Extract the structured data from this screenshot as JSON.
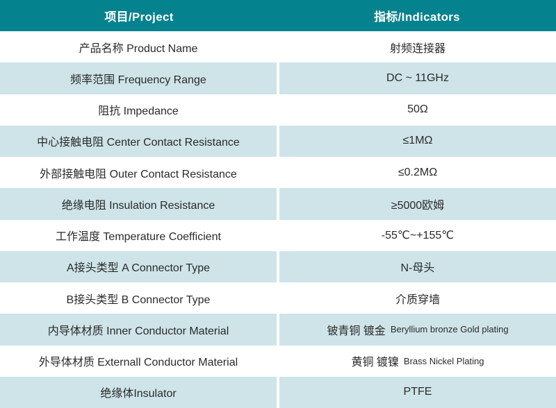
{
  "table": {
    "header": {
      "project": "项目/Project",
      "indicators": "指标/Indicators"
    },
    "rows": [
      {
        "project": "产品名称 Product Name",
        "indicator": "射频连接器"
      },
      {
        "project": "频率范围 Frequency Range",
        "indicator": "DC ~ 11GHz"
      },
      {
        "project": "阻抗 Impedance",
        "indicator": "50Ω"
      },
      {
        "project": "中心接触电阻 Center Contact Resistance",
        "indicator": "≤1MΩ"
      },
      {
        "project": "外部接触电阻 Outer Contact Resistance",
        "indicator": "≤0.2MΩ"
      },
      {
        "project": "绝缘电阻 Insulation Resistance",
        "indicator": "≥5000欧姆"
      },
      {
        "project": "工作温度 Temperature Coefficient",
        "indicator": "-55℃~+155℃"
      },
      {
        "project": "A接头类型 A Connector Type",
        "indicator": "N-母头"
      },
      {
        "project": "B接头类型 B Connector Type",
        "indicator": "介质穿墙"
      },
      {
        "project": "内导体材质 Inner Conductor Material",
        "indicator_main": "铍青铜 镀金",
        "indicator_sub": "Beryllium bronze Gold plating"
      },
      {
        "project": "外导体材质 Externall Conductor Material",
        "indicator_main": "黄铜 镀镍",
        "indicator_sub": "Brass Nickel Plating"
      },
      {
        "project": "绝缘体Insulator",
        "indicator": "PTFE"
      }
    ],
    "colors": {
      "header_bg": "#04828e",
      "header_text": "#ffffff",
      "row_tint": "#cee4e9",
      "row_white": "#ffffff",
      "text": "#2a2a2a"
    }
  }
}
